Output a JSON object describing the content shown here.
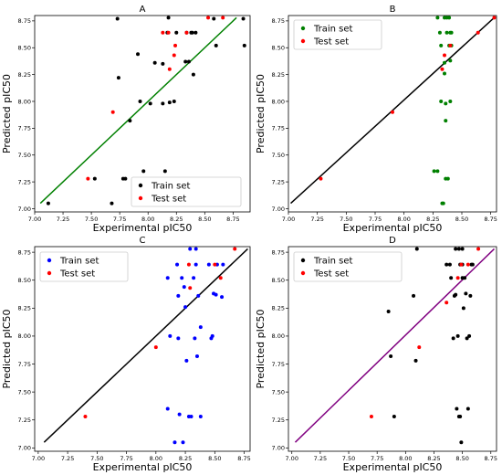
{
  "chart_data": [
    {
      "type": "scatter",
      "title": "A",
      "xlabel": "Experimental pIC50",
      "ylabel": "Predicted pIC50",
      "xlim": [
        7.0,
        8.9
      ],
      "ylim": [
        6.97,
        8.8
      ],
      "xticks": [
        "7.00",
        "7.25",
        "7.50",
        "7.75",
        "8.00",
        "8.25",
        "8.50",
        "8.75"
      ],
      "yticks": [
        "7.00",
        "7.25",
        "7.50",
        "7.75",
        "8.00",
        "8.25",
        "8.50",
        "8.75"
      ],
      "legend": "bottom-right",
      "fit_line": {
        "color": "#008000",
        "x": [
          7.05,
          8.78
        ],
        "y": [
          7.05,
          8.78
        ]
      },
      "series": [
        {
          "name": "Train set",
          "color": "#000000",
          "points": [
            [
              7.12,
              7.05
            ],
            [
              7.53,
              7.28
            ],
            [
              7.68,
              7.05
            ],
            [
              7.73,
              8.77
            ],
            [
              7.74,
              8.22
            ],
            [
              7.78,
              7.28
            ],
            [
              7.8,
              7.28
            ],
            [
              7.84,
              7.82
            ],
            [
              7.91,
              8.44
            ],
            [
              7.93,
              8.0
            ],
            [
              7.96,
              7.35
            ],
            [
              8.02,
              7.98
            ],
            [
              8.06,
              8.36
            ],
            [
              8.13,
              8.35
            ],
            [
              8.13,
              7.98
            ],
            [
              8.15,
              7.35
            ],
            [
              8.17,
              8.64
            ],
            [
              8.18,
              8.78
            ],
            [
              8.19,
              7.99
            ],
            [
              8.23,
              8.0
            ],
            [
              8.25,
              8.64
            ],
            [
              8.33,
              8.37
            ],
            [
              8.34,
              8.64
            ],
            [
              8.36,
              8.37
            ],
            [
              8.38,
              8.64
            ],
            [
              8.39,
              8.64
            ],
            [
              8.4,
              8.25
            ],
            [
              8.42,
              8.64
            ],
            [
              8.58,
              8.77
            ],
            [
              8.6,
              8.52
            ],
            [
              8.84,
              8.77
            ],
            [
              8.85,
              8.52
            ]
          ]
        },
        {
          "name": "Test set",
          "color": "#ff0000",
          "points": [
            [
              7.47,
              7.28
            ],
            [
              7.69,
              7.9
            ],
            [
              8.13,
              8.64
            ],
            [
              8.18,
              8.64
            ],
            [
              8.19,
              8.3
            ],
            [
              8.23,
              8.43
            ],
            [
              8.24,
              8.52
            ],
            [
              8.34,
              8.64
            ],
            [
              8.53,
              8.78
            ],
            [
              8.66,
              8.78
            ]
          ]
        }
      ]
    },
    {
      "type": "scatter",
      "title": "B",
      "xlabel": "Experimental pIC50",
      "ylabel": "Predicted pIC50",
      "xlim": [
        7.0,
        8.8
      ],
      "ylim": [
        6.97,
        8.8
      ],
      "xticks": [
        "7.00",
        "7.25",
        "7.50",
        "7.75",
        "8.00",
        "8.25",
        "8.50",
        "8.75"
      ],
      "yticks": [
        "7.00",
        "7.25",
        "7.50",
        "7.75",
        "8.00",
        "8.25",
        "8.50",
        "8.75"
      ],
      "legend": "top-left",
      "fit_line": {
        "color": "#000000",
        "x": [
          7.02,
          8.78
        ],
        "y": [
          7.05,
          8.78
        ]
      },
      "series": [
        {
          "name": "Train set",
          "color": "#008000",
          "points": [
            [
              8.26,
              7.35
            ],
            [
              8.29,
              7.35
            ],
            [
              8.29,
              8.78
            ],
            [
              8.31,
              8.64
            ],
            [
              8.32,
              8.52
            ],
            [
              8.32,
              8.0
            ],
            [
              8.33,
              7.05
            ],
            [
              8.34,
              7.05
            ],
            [
              8.35,
              8.78
            ],
            [
              8.35,
              8.36
            ],
            [
              8.35,
              8.26
            ],
            [
              8.36,
              7.98
            ],
            [
              8.36,
              7.82
            ],
            [
              8.36,
              7.28
            ],
            [
              8.37,
              8.78
            ],
            [
              8.37,
              8.64
            ],
            [
              8.38,
              7.28
            ],
            [
              8.39,
              8.52
            ],
            [
              8.39,
              8.78
            ],
            [
              8.4,
              8.38
            ],
            [
              8.4,
              8.0
            ],
            [
              8.4,
              8.64
            ],
            [
              8.41,
              8.64
            ],
            [
              8.41,
              8.52
            ]
          ]
        },
        {
          "name": "Test set",
          "color": "#ff0000",
          "points": [
            [
              7.28,
              7.28
            ],
            [
              7.9,
              7.9
            ],
            [
              8.33,
              8.3
            ],
            [
              8.35,
              8.43
            ],
            [
              8.4,
              8.52
            ],
            [
              8.64,
              8.64
            ],
            [
              8.78,
              8.78
            ]
          ]
        }
      ]
    },
    {
      "type": "scatter",
      "title": "C",
      "xlabel": "Experimental pIC50",
      "ylabel": "Predicted pIC50",
      "xlim": [
        6.97,
        8.8
      ],
      "ylim": [
        6.97,
        8.8
      ],
      "xticks": [
        "7.00",
        "7.25",
        "7.50",
        "7.75",
        "8.00",
        "8.25",
        "8.50",
        "8.75"
      ],
      "yticks": [
        "7.00",
        "7.25",
        "7.50",
        "7.75",
        "8.00",
        "8.25",
        "8.50",
        "8.75"
      ],
      "legend": "top-left",
      "fit_line": {
        "color": "#000000",
        "x": [
          7.05,
          8.78
        ],
        "y": [
          7.05,
          8.78
        ]
      },
      "series": [
        {
          "name": "Train set",
          "color": "#0000ff",
          "points": [
            [
              8.1,
              8.52
            ],
            [
              8.1,
              7.35
            ],
            [
              8.12,
              8.0
            ],
            [
              8.16,
              7.05
            ],
            [
              8.18,
              8.64
            ],
            [
              8.19,
              8.36
            ],
            [
              8.19,
              7.98
            ],
            [
              8.2,
              7.3
            ],
            [
              8.22,
              8.52
            ],
            [
              8.23,
              7.05
            ],
            [
              8.24,
              8.44
            ],
            [
              8.25,
              8.26
            ],
            [
              8.26,
              7.78
            ],
            [
              8.28,
              7.28
            ],
            [
              8.29,
              8.78
            ],
            [
              8.3,
              7.28
            ],
            [
              8.32,
              8.52
            ],
            [
              8.33,
              7.98
            ],
            [
              8.34,
              8.64
            ],
            [
              8.34,
              8.78
            ],
            [
              8.35,
              7.82
            ],
            [
              8.36,
              8.36
            ],
            [
              8.38,
              8.08
            ],
            [
              8.38,
              7.28
            ],
            [
              8.45,
              8.64
            ],
            [
              8.47,
              7.98
            ],
            [
              8.48,
              8.0
            ],
            [
              8.49,
              8.38
            ],
            [
              8.51,
              8.37
            ],
            [
              8.52,
              8.64
            ],
            [
              8.56,
              8.35
            ],
            [
              8.57,
              8.64
            ]
          ]
        },
        {
          "name": "Test set",
          "color": "#ff0000",
          "points": [
            [
              7.4,
              7.28
            ],
            [
              8.0,
              7.9
            ],
            [
              8.28,
              8.64
            ],
            [
              8.29,
              8.43
            ],
            [
              8.5,
              8.64
            ],
            [
              8.55,
              8.52
            ],
            [
              8.67,
              8.78
            ]
          ]
        }
      ]
    },
    {
      "type": "scatter",
      "title": "D",
      "xlabel": "Experimental pIC50",
      "ylabel": "Predicted pIC50",
      "xlim": [
        6.97,
        8.8
      ],
      "ylim": [
        6.97,
        8.8
      ],
      "xticks": [
        "7.00",
        "7.25",
        "7.50",
        "7.75",
        "8.00",
        "8.25",
        "8.50",
        "8.75"
      ],
      "yticks": [
        "7.00",
        "7.25",
        "7.50",
        "7.75",
        "8.00",
        "8.25",
        "8.50",
        "8.75"
      ],
      "legend": "top-left",
      "fit_line": {
        "color": "#800080",
        "x": [
          7.03,
          8.78
        ],
        "y": [
          7.05,
          8.78
        ]
      },
      "series": [
        {
          "name": "Train set",
          "color": "#000000",
          "points": [
            [
              7.85,
              8.22
            ],
            [
              7.87,
              7.82
            ],
            [
              7.9,
              7.28
            ],
            [
              8.07,
              8.36
            ],
            [
              8.09,
              7.78
            ],
            [
              8.1,
              8.78
            ],
            [
              8.36,
              8.64
            ],
            [
              8.39,
              8.64
            ],
            [
              8.4,
              8.52
            ],
            [
              8.42,
              7.98
            ],
            [
              8.43,
              8.36
            ],
            [
              8.44,
              8.78
            ],
            [
              8.44,
              8.37
            ],
            [
              8.45,
              7.35
            ],
            [
              8.46,
              8.0
            ],
            [
              8.47,
              8.78
            ],
            [
              8.47,
              7.28
            ],
            [
              8.48,
              8.64
            ],
            [
              8.48,
              7.28
            ],
            [
              8.49,
              7.05
            ],
            [
              8.5,
              8.78
            ],
            [
              8.5,
              8.52
            ],
            [
              8.5,
              8.64
            ],
            [
              8.51,
              8.25
            ],
            [
              8.52,
              8.52
            ],
            [
              8.53,
              8.38
            ],
            [
              8.54,
              7.98
            ],
            [
              8.55,
              7.35
            ],
            [
              8.56,
              8.0
            ],
            [
              8.57,
              8.36
            ],
            [
              8.58,
              8.64
            ],
            [
              8.59,
              8.64
            ]
          ]
        },
        {
          "name": "Test set",
          "color": "#ff0000",
          "points": [
            [
              7.7,
              7.28
            ],
            [
              8.12,
              7.9
            ],
            [
              8.36,
              8.3
            ],
            [
              8.46,
              8.52
            ],
            [
              8.49,
              8.64
            ],
            [
              8.55,
              8.64
            ],
            [
              8.64,
              8.78
            ]
          ]
        }
      ]
    }
  ]
}
